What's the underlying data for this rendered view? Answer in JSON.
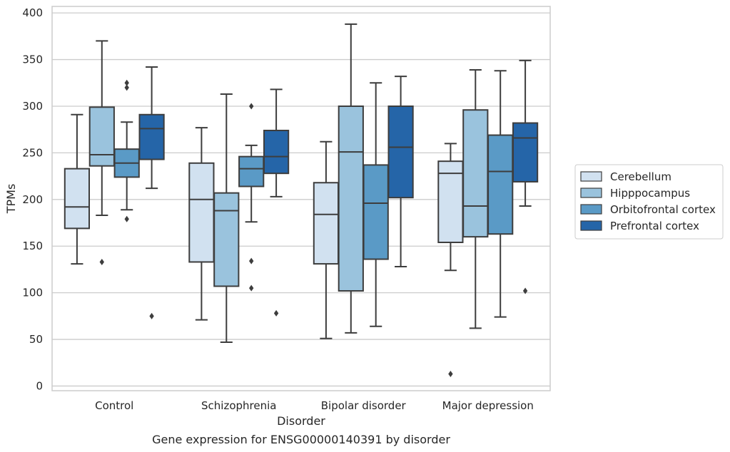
{
  "chart_data": {
    "type": "box",
    "xlabel": "Disorder",
    "ylabel": "TPMs",
    "caption": "Gene expression for ENSG00000140391 by disorder",
    "ylim": [
      -5,
      407
    ],
    "yticks": [
      0,
      50,
      100,
      150,
      200,
      250,
      300,
      350,
      400
    ],
    "grid": true,
    "legend_position": "right",
    "categories": [
      "Control",
      "Schizophrenia",
      "Bipolar disorder",
      "Major depression"
    ],
    "series": [
      {
        "name": "Cerebellum",
        "color": "#d1e1f0",
        "boxes": [
          {
            "q1": 169,
            "median": 192,
            "q3": 233,
            "whisker_low": 131,
            "whisker_high": 291,
            "outliers": []
          },
          {
            "q1": 133,
            "median": 200,
            "q3": 239,
            "whisker_low": 71,
            "whisker_high": 277,
            "outliers": []
          },
          {
            "q1": 131,
            "median": 184,
            "q3": 218,
            "whisker_low": 51,
            "whisker_high": 262,
            "outliers": []
          },
          {
            "q1": 154,
            "median": 228,
            "q3": 241,
            "whisker_low": 124,
            "whisker_high": 260,
            "outliers": [
              13
            ]
          }
        ]
      },
      {
        "name": "Hipppocampus",
        "color": "#9ac3dd",
        "boxes": [
          {
            "q1": 236,
            "median": 248,
            "q3": 299,
            "whisker_low": 183,
            "whisker_high": 370,
            "outliers": [
              133
            ]
          },
          {
            "q1": 107,
            "median": 188,
            "q3": 207,
            "whisker_low": 47,
            "whisker_high": 313,
            "outliers": []
          },
          {
            "q1": 102,
            "median": 251,
            "q3": 300,
            "whisker_low": 57,
            "whisker_high": 388,
            "outliers": []
          },
          {
            "q1": 160,
            "median": 193,
            "q3": 296,
            "whisker_low": 62,
            "whisker_high": 339,
            "outliers": []
          }
        ]
      },
      {
        "name": "Orbitofrontal cortex",
        "color": "#5a9ac6",
        "boxes": [
          {
            "q1": 224,
            "median": 239,
            "q3": 254,
            "whisker_low": 189,
            "whisker_high": 283,
            "outliers": [
              179,
              320,
              325
            ]
          },
          {
            "q1": 214,
            "median": 233,
            "q3": 246,
            "whisker_low": 176,
            "whisker_high": 258,
            "outliers": [
              105,
              134,
              300
            ]
          },
          {
            "q1": 136,
            "median": 196,
            "q3": 237,
            "whisker_low": 64,
            "whisker_high": 325,
            "outliers": []
          },
          {
            "q1": 163,
            "median": 230,
            "q3": 269,
            "whisker_low": 74,
            "whisker_high": 338,
            "outliers": []
          }
        ]
      },
      {
        "name": "Prefrontal cortex",
        "color": "#2565a8",
        "boxes": [
          {
            "q1": 243,
            "median": 276,
            "q3": 291,
            "whisker_low": 212,
            "whisker_high": 342,
            "outliers": [
              75
            ]
          },
          {
            "q1": 228,
            "median": 246,
            "q3": 274,
            "whisker_low": 203,
            "whisker_high": 318,
            "outliers": [
              78
            ]
          },
          {
            "q1": 202,
            "median": 256,
            "q3": 300,
            "whisker_low": 128,
            "whisker_high": 332,
            "outliers": []
          },
          {
            "q1": 219,
            "median": 266,
            "q3": 282,
            "whisker_low": 193,
            "whisker_high": 349,
            "outliers": [
              102
            ]
          }
        ]
      }
    ]
  }
}
